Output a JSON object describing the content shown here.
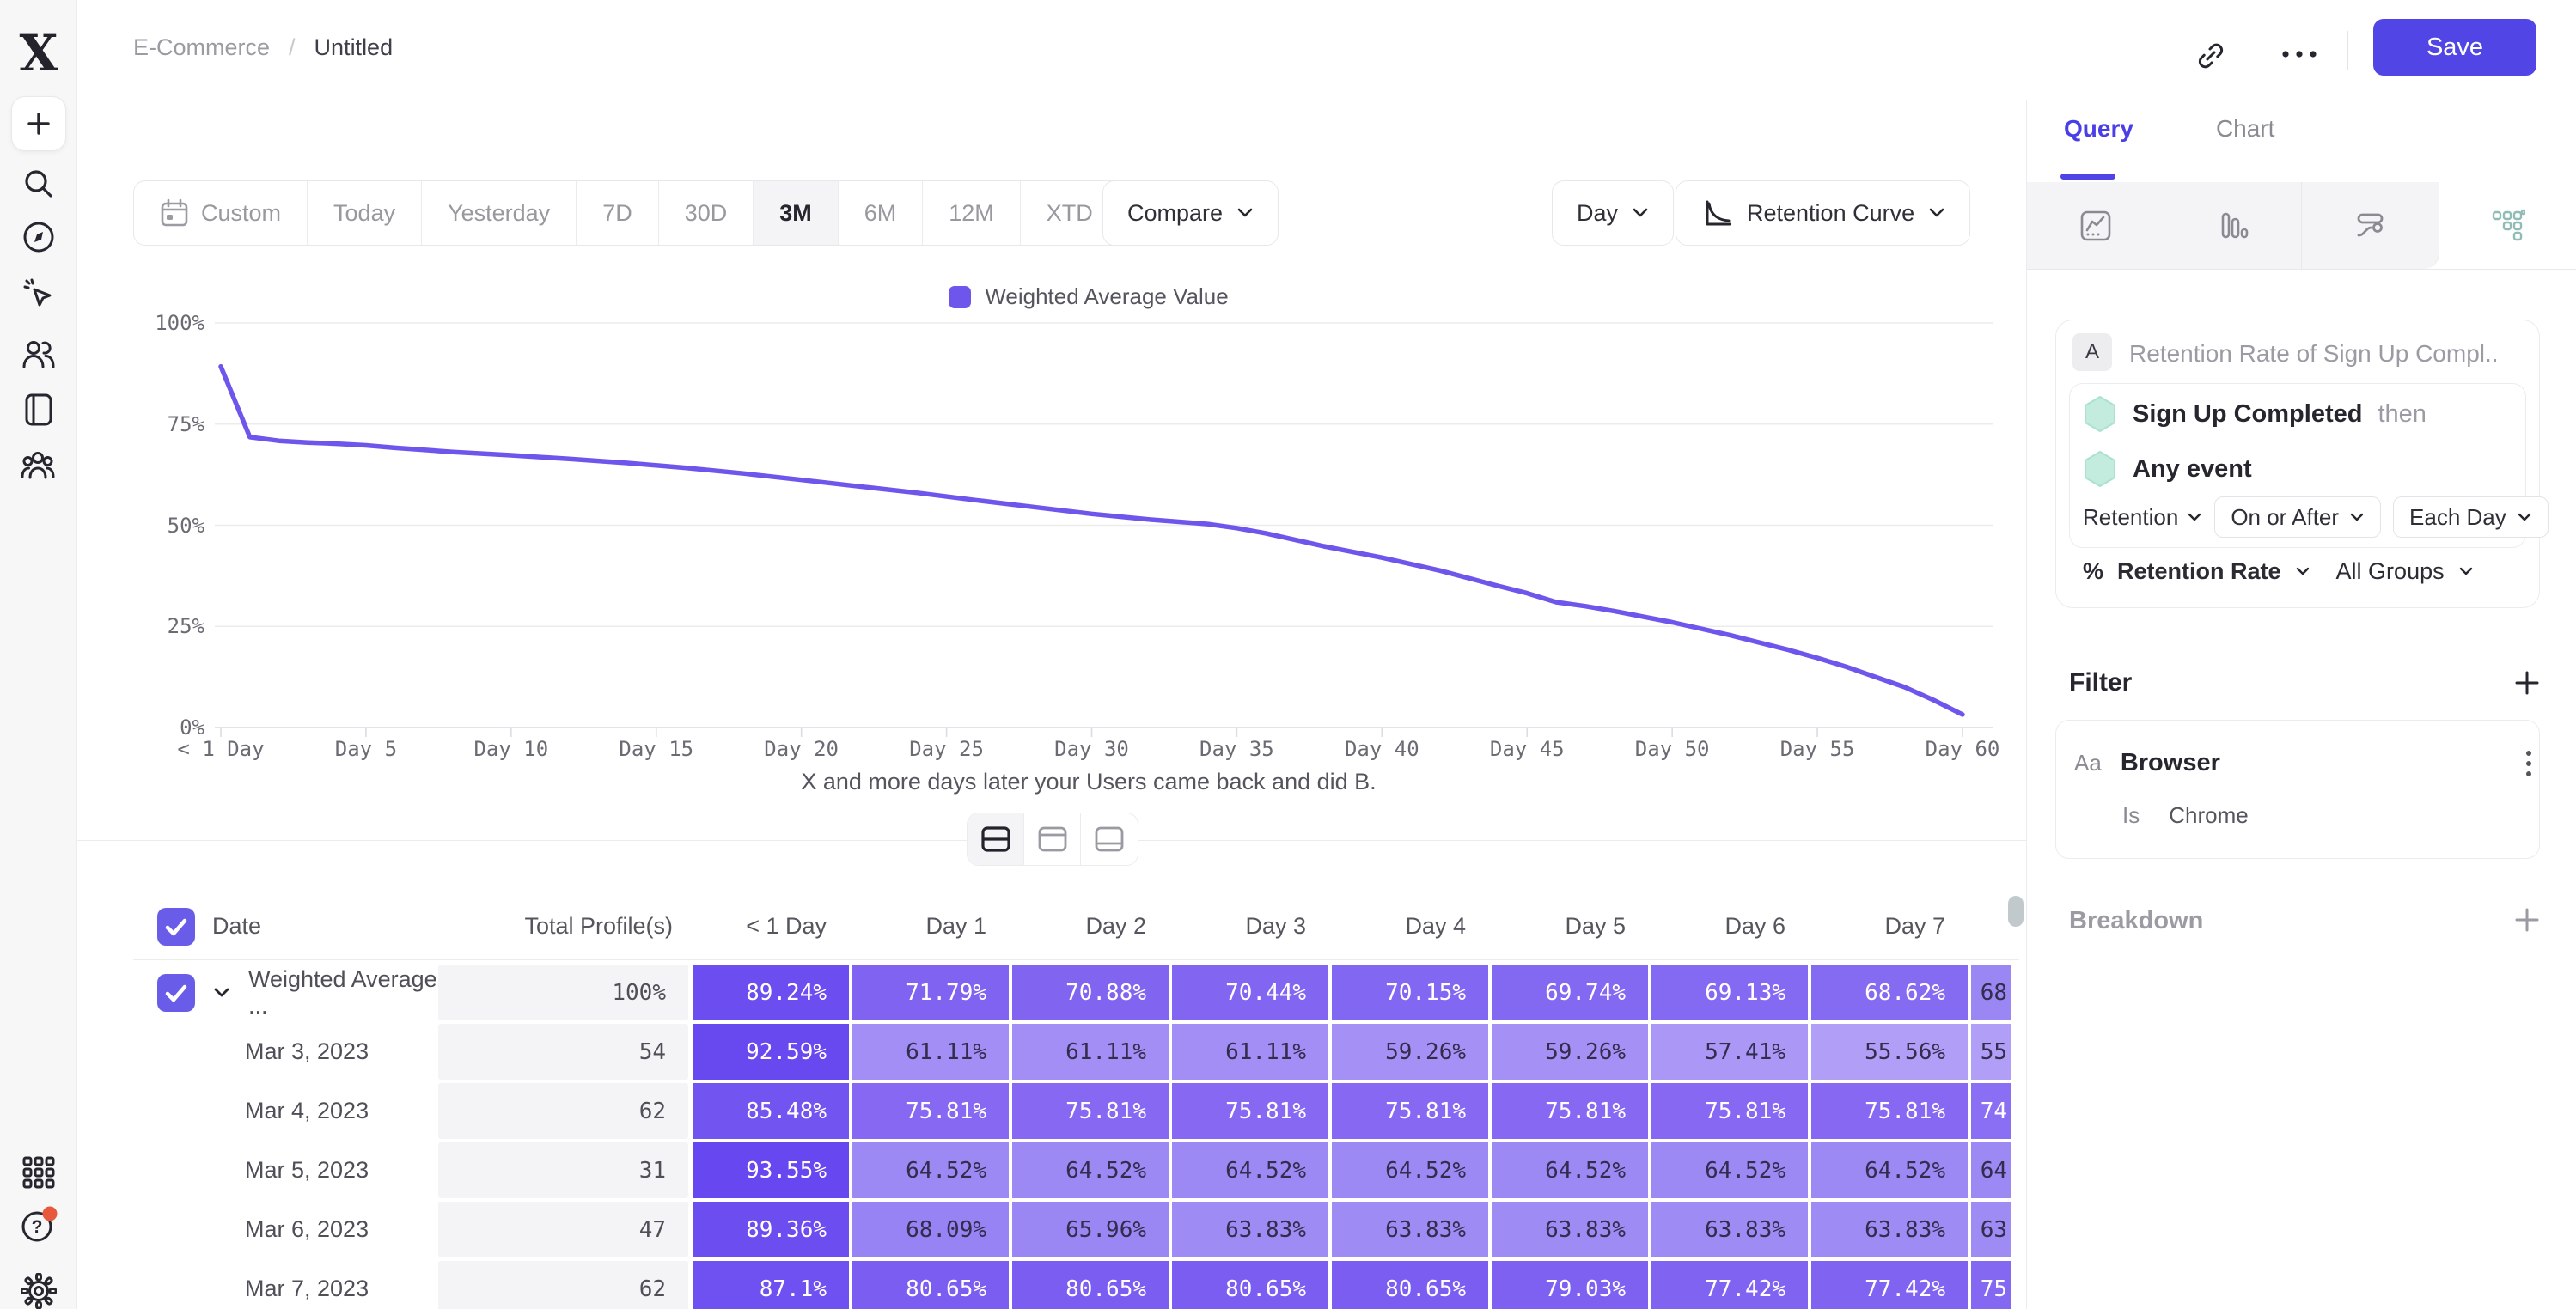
{
  "header": {
    "breadcrumb": {
      "parent": "E-Commerce",
      "separator": "/",
      "current": "Untitled"
    },
    "save_label": "Save"
  },
  "sidebar": {
    "icons": [
      "logo",
      "new-plus",
      "search",
      "compass",
      "cursor-click",
      "users",
      "notebook",
      "people-group",
      "apps-grid",
      "help",
      "settings-gear"
    ],
    "help_badge_color": "#e8583c"
  },
  "toolbar": {
    "date_ranges": [
      {
        "label": "Custom",
        "icon": "calendar"
      },
      {
        "label": "Today"
      },
      {
        "label": "Yesterday"
      },
      {
        "label": "7D"
      },
      {
        "label": "30D"
      },
      {
        "label": "3M",
        "active": true
      },
      {
        "label": "6M"
      },
      {
        "label": "12M"
      },
      {
        "label": "XTD",
        "chevron": true
      }
    ],
    "compare_label": "Compare",
    "granularity_label": "Day",
    "chart_type_label": "Retention Curve"
  },
  "chart_data": {
    "type": "line",
    "legend": [
      "Weighted Average Value"
    ],
    "xlim": [
      0,
      60
    ],
    "ylim": [
      0,
      100
    ],
    "grid": true,
    "legend_position": "top-center",
    "caption": "X and more days later your Users came back and did B.",
    "x_ticks": [
      {
        "day": 0,
        "label": "< 1 Day"
      },
      {
        "day": 5,
        "label": "Day 5"
      },
      {
        "day": 10,
        "label": "Day 10"
      },
      {
        "day": 15,
        "label": "Day 15"
      },
      {
        "day": 20,
        "label": "Day 20"
      },
      {
        "day": 25,
        "label": "Day 25"
      },
      {
        "day": 30,
        "label": "Day 30"
      },
      {
        "day": 35,
        "label": "Day 35"
      },
      {
        "day": 40,
        "label": "Day 40"
      },
      {
        "day": 45,
        "label": "Day 45"
      },
      {
        "day": 50,
        "label": "Day 50"
      },
      {
        "day": 55,
        "label": "Day 55"
      },
      {
        "day": 60,
        "label": "Day 60"
      }
    ],
    "y_ticks": [
      {
        "value": 100,
        "label": "100%"
      },
      {
        "value": 75,
        "label": "75%"
      },
      {
        "value": 50,
        "label": "50%"
      },
      {
        "value": 25,
        "label": "25%"
      },
      {
        "value": 0,
        "label": "0%"
      }
    ],
    "series": [
      {
        "name": "Weighted Average Value",
        "color": "#6e56ec",
        "points": [
          [
            0,
            89.24
          ],
          [
            1,
            71.79
          ],
          [
            2,
            70.88
          ],
          [
            3,
            70.44
          ],
          [
            4,
            70.15
          ],
          [
            5,
            69.74
          ],
          [
            6,
            69.13
          ],
          [
            7,
            68.62
          ],
          [
            8,
            68.1
          ],
          [
            10,
            67.3
          ],
          [
            12,
            66.4
          ],
          [
            14,
            65.4
          ],
          [
            16,
            64.2
          ],
          [
            18,
            62.8
          ],
          [
            20,
            61.2
          ],
          [
            22,
            59.6
          ],
          [
            24,
            58.0
          ],
          [
            26,
            56.2
          ],
          [
            28,
            54.5
          ],
          [
            30,
            52.8
          ],
          [
            32,
            51.4
          ],
          [
            34,
            50.3
          ],
          [
            35,
            49.3
          ],
          [
            36,
            48.0
          ],
          [
            38,
            44.8
          ],
          [
            40,
            42.0
          ],
          [
            42,
            38.8
          ],
          [
            44,
            35.0
          ],
          [
            45,
            33.2
          ],
          [
            46,
            31.0
          ],
          [
            47,
            30.0
          ],
          [
            48,
            28.8
          ],
          [
            50,
            26.0
          ],
          [
            52,
            22.8
          ],
          [
            54,
            19.2
          ],
          [
            55,
            17.2
          ],
          [
            56,
            15.0
          ],
          [
            58,
            10.0
          ],
          [
            59,
            6.8
          ],
          [
            60,
            3.2
          ]
        ]
      }
    ]
  },
  "view_toggle": {
    "options": [
      "split-view",
      "chart-view",
      "table-view"
    ],
    "active": "split-view"
  },
  "table": {
    "columns": [
      "Date",
      "Total Profile(s)",
      "< 1 Day",
      "Day 1",
      "Day 2",
      "Day 3",
      "Day 4",
      "Day 5",
      "Day 6",
      "Day 7"
    ],
    "dark_text": "#322d4d",
    "rows": [
      {
        "label": "Weighted Average ...",
        "checked": true,
        "expandable": true,
        "total": "100%",
        "cells": [
          {
            "v": "89.24%",
            "bg": "#6b4df0",
            "fg": "#ffffff"
          },
          {
            "v": "71.79%",
            "bg": "#8064f1",
            "fg": "#ffffff"
          },
          {
            "v": "70.88%",
            "bg": "#8165f1",
            "fg": "#ffffff"
          },
          {
            "v": "70.44%",
            "bg": "#8266f2",
            "fg": "#ffffff"
          },
          {
            "v": "70.15%",
            "bg": "#8267f2",
            "fg": "#ffffff"
          },
          {
            "v": "69.74%",
            "bg": "#8368f2",
            "fg": "#ffffff"
          },
          {
            "v": "69.13%",
            "bg": "#8469f2",
            "fg": "#ffffff"
          },
          {
            "v": "68.62%",
            "bg": "#856af2",
            "fg": "#ffffff"
          },
          {
            "v": "68",
            "bg": "#9b87f4",
            "fg": "#322d4d",
            "partial": true
          }
        ]
      },
      {
        "label": "Mar 3, 2023",
        "total": "54",
        "cells": [
          {
            "v": "92.59%",
            "bg": "#6849f0",
            "fg": "#ffffff"
          },
          {
            "v": "61.11%",
            "bg": "#a28ef5",
            "fg": "#322d4d"
          },
          {
            "v": "61.11%",
            "bg": "#a28ef5",
            "fg": "#322d4d"
          },
          {
            "v": "61.11%",
            "bg": "#a28ef5",
            "fg": "#322d4d"
          },
          {
            "v": "59.26%",
            "bg": "#a591f5",
            "fg": "#322d4d"
          },
          {
            "v": "59.26%",
            "bg": "#a591f5",
            "fg": "#322d4d"
          },
          {
            "v": "57.41%",
            "bg": "#ab98f6",
            "fg": "#322d4d"
          },
          {
            "v": "55.56%",
            "bg": "#b09ef7",
            "fg": "#322d4d"
          },
          {
            "v": "55",
            "bg": "#b09ef7",
            "fg": "#322d4d",
            "partial": true
          }
        ]
      },
      {
        "label": "Mar 4, 2023",
        "total": "62",
        "cells": [
          {
            "v": "85.48%",
            "bg": "#7254f1",
            "fg": "#ffffff"
          },
          {
            "v": "75.81%",
            "bg": "#8668f2",
            "fg": "#ffffff"
          },
          {
            "v": "75.81%",
            "bg": "#8668f2",
            "fg": "#ffffff"
          },
          {
            "v": "75.81%",
            "bg": "#8668f2",
            "fg": "#ffffff"
          },
          {
            "v": "75.81%",
            "bg": "#8668f2",
            "fg": "#ffffff"
          },
          {
            "v": "75.81%",
            "bg": "#8668f2",
            "fg": "#ffffff"
          },
          {
            "v": "75.81%",
            "bg": "#8668f2",
            "fg": "#ffffff"
          },
          {
            "v": "75.81%",
            "bg": "#8668f2",
            "fg": "#ffffff"
          },
          {
            "v": "74",
            "bg": "#8a6ef3",
            "fg": "#ffffff",
            "partial": true
          }
        ]
      },
      {
        "label": "Mar 5, 2023",
        "total": "31",
        "cells": [
          {
            "v": "93.55%",
            "bg": "#6747f0",
            "fg": "#ffffff"
          },
          {
            "v": "64.52%",
            "bg": "#9d89f4",
            "fg": "#322d4d"
          },
          {
            "v": "64.52%",
            "bg": "#9d89f4",
            "fg": "#322d4d"
          },
          {
            "v": "64.52%",
            "bg": "#9d89f4",
            "fg": "#322d4d"
          },
          {
            "v": "64.52%",
            "bg": "#9d89f4",
            "fg": "#322d4d"
          },
          {
            "v": "64.52%",
            "bg": "#9d89f4",
            "fg": "#322d4d"
          },
          {
            "v": "64.52%",
            "bg": "#9d89f4",
            "fg": "#322d4d"
          },
          {
            "v": "64.52%",
            "bg": "#9d89f4",
            "fg": "#322d4d"
          },
          {
            "v": "64",
            "bg": "#9d89f4",
            "fg": "#322d4d",
            "partial": true
          }
        ]
      },
      {
        "label": "Mar 6, 2023",
        "total": "47",
        "cells": [
          {
            "v": "89.36%",
            "bg": "#6b4df0",
            "fg": "#ffffff"
          },
          {
            "v": "68.09%",
            "bg": "#9783f3",
            "fg": "#322d4d"
          },
          {
            "v": "65.96%",
            "bg": "#9b87f4",
            "fg": "#322d4d"
          },
          {
            "v": "63.83%",
            "bg": "#9f8bf4",
            "fg": "#322d4d"
          },
          {
            "v": "63.83%",
            "bg": "#9f8bf4",
            "fg": "#322d4d"
          },
          {
            "v": "63.83%",
            "bg": "#9f8bf4",
            "fg": "#322d4d"
          },
          {
            "v": "63.83%",
            "bg": "#9f8bf4",
            "fg": "#322d4d"
          },
          {
            "v": "63.83%",
            "bg": "#9f8bf4",
            "fg": "#322d4d"
          },
          {
            "v": "63",
            "bg": "#9f8bf4",
            "fg": "#322d4d",
            "partial": true
          }
        ]
      },
      {
        "label": "Mar 7, 2023",
        "total": "62",
        "cells": [
          {
            "v": "87.1%",
            "bg": "#6f50f0",
            "fg": "#ffffff"
          },
          {
            "v": "80.65%",
            "bg": "#7b5ef1",
            "fg": "#ffffff"
          },
          {
            "v": "80.65%",
            "bg": "#7b5ef1",
            "fg": "#ffffff"
          },
          {
            "v": "80.65%",
            "bg": "#7b5ef1",
            "fg": "#ffffff"
          },
          {
            "v": "80.65%",
            "bg": "#7b5ef1",
            "fg": "#ffffff"
          },
          {
            "v": "79.03%",
            "bg": "#7e61f1",
            "fg": "#ffffff"
          },
          {
            "v": "77.42%",
            "bg": "#8163f1",
            "fg": "#ffffff"
          },
          {
            "v": "77.42%",
            "bg": "#8163f1",
            "fg": "#ffffff"
          },
          {
            "v": "75",
            "bg": "#8568f2",
            "fg": "#ffffff",
            "partial": true
          }
        ]
      }
    ]
  },
  "panel": {
    "tabs": {
      "query": "Query",
      "chart": "Chart"
    },
    "active_tab": "Query",
    "chart_type_tabs": [
      "insights",
      "bar",
      "flow",
      "retention"
    ],
    "active_chart_type": "retention",
    "query": {
      "series_badge": "A",
      "series_title": "Retention Rate of Sign Up Compl...",
      "first_event": "Sign Up Completed",
      "then_label": "then",
      "return_event": "Any event",
      "retention_dropdown": "Retention",
      "window_dropdown": "On or After",
      "granularity_dropdown": "Each Day",
      "measure_prefix": "%",
      "measure": "Retention Rate",
      "groups": "All Groups"
    },
    "filter": {
      "title": "Filter",
      "property_type": "Aa",
      "property": "Browser",
      "operator": "Is",
      "value": "Chrome"
    },
    "breakdown_label": "Breakdown"
  },
  "colors": {
    "accent": "#5145e5",
    "line": "#6e56ec",
    "hexagon_fill": "#c3ecdf",
    "notification": "#e8583c"
  }
}
